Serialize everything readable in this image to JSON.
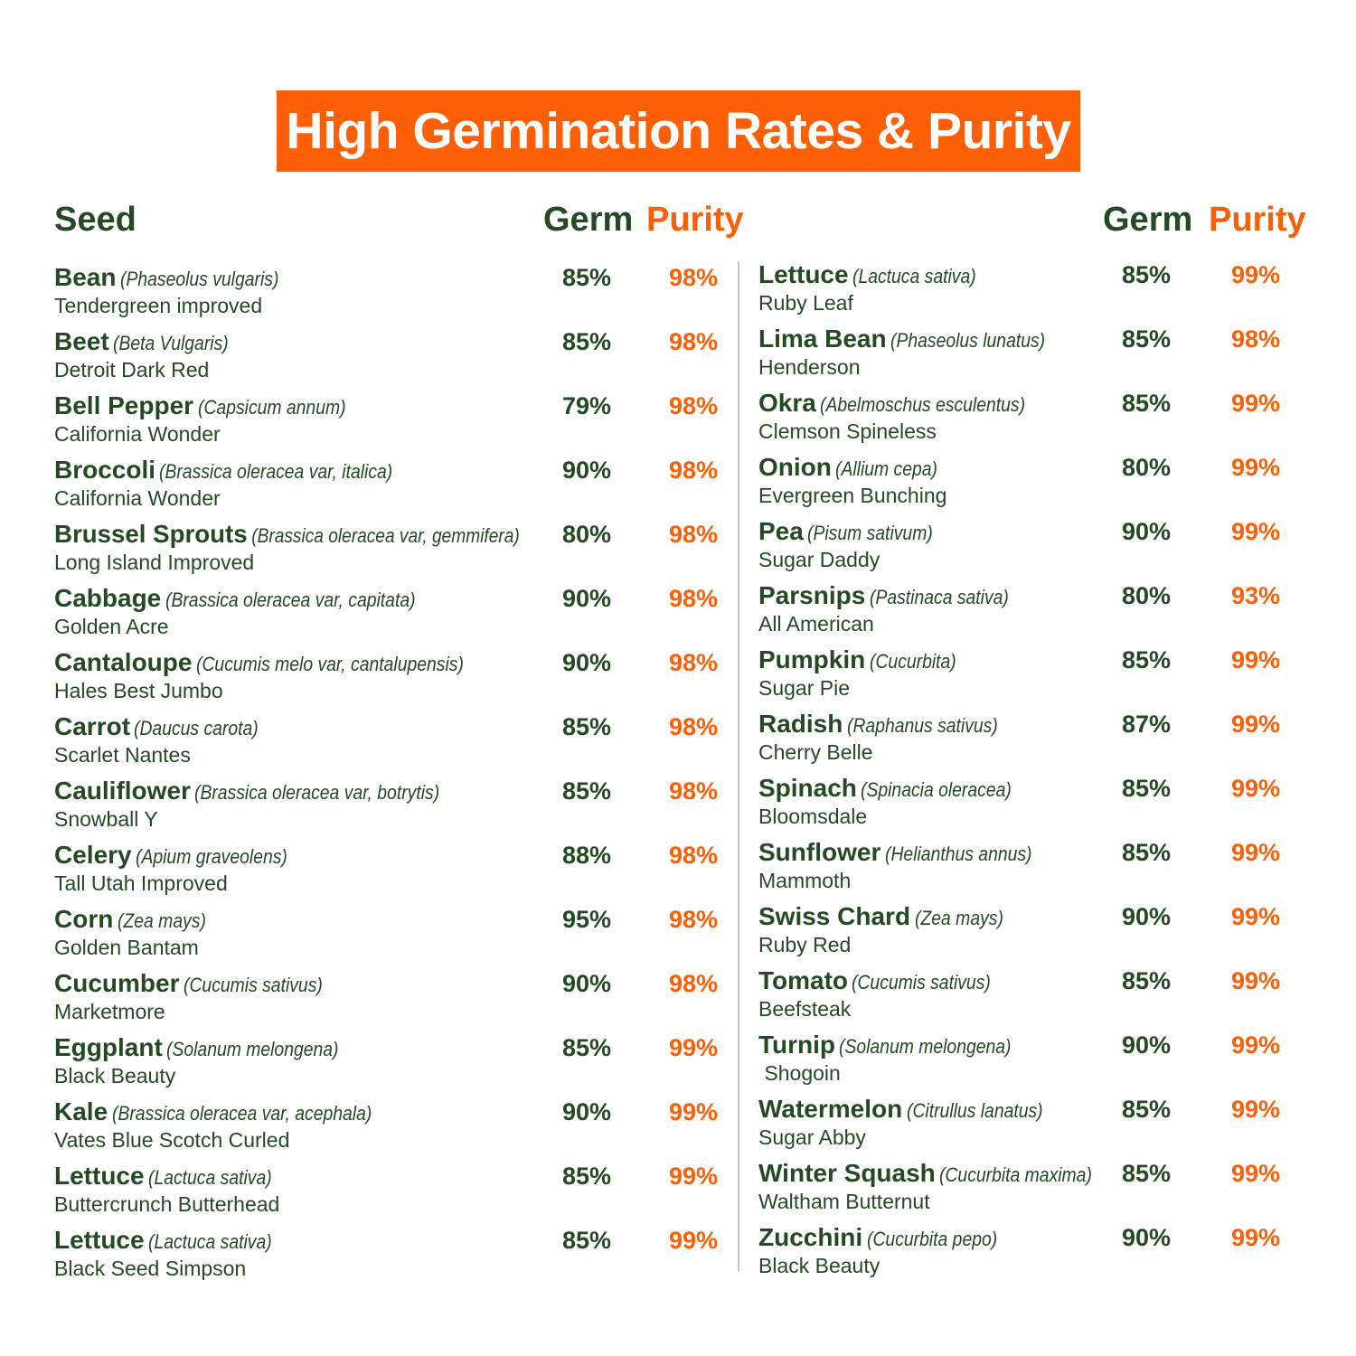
{
  "title": "High Germination Rates & Purity",
  "headers": {
    "seed": "Seed",
    "germ": "Germ",
    "purity": "Purity"
  },
  "colors": {
    "accent": "#fc5f06",
    "text": "#234a22",
    "divider": "#c4c4c4"
  },
  "left_rows": [
    {
      "name": "Bean",
      "sci": "(Phaseolus vulgaris)",
      "variety": "Tendergreen improved",
      "germ": "85%",
      "purity": "98%"
    },
    {
      "name": "Beet",
      "sci": "(Beta Vulgaris)",
      "variety": "Detroit Dark Red",
      "germ": "85%",
      "purity": "98%"
    },
    {
      "name": "Bell Pepper",
      "sci": "(Capsicum annum)",
      "variety": "California Wonder",
      "germ": "79%",
      "purity": "98%"
    },
    {
      "name": "Broccoli",
      "sci": "(Brassica oleracea var, italica)",
      "variety": "California Wonder",
      "germ": "90%",
      "purity": "98%"
    },
    {
      "name": "Brussel Sprouts",
      "sci": "(Brassica oleracea var, gemmifera)",
      "variety": "Long Island Improved",
      "germ": "80%",
      "purity": "98%"
    },
    {
      "name": "Cabbage",
      "sci": "(Brassica oleracea var, capitata)",
      "variety": "Golden Acre",
      "germ": "90%",
      "purity": "98%"
    },
    {
      "name": "Cantaloupe",
      "sci": "(Cucumis melo var, cantalupensis)",
      "variety": "Hales Best Jumbo",
      "germ": "90%",
      "purity": "98%"
    },
    {
      "name": "Carrot",
      "sci": "(Daucus carota)",
      "variety": "Scarlet Nantes",
      "germ": "85%",
      "purity": "98%"
    },
    {
      "name": "Cauliflower",
      "sci": "(Brassica oleracea var, botrytis)",
      "variety": "Snowball Y",
      "germ": "85%",
      "purity": "98%"
    },
    {
      "name": "Celery",
      "sci": "(Apium graveolens)",
      "variety": "Tall Utah Improved",
      "germ": "88%",
      "purity": "98%"
    },
    {
      "name": "Corn",
      "sci": "(Zea mays)",
      "variety": "Golden Bantam",
      "germ": "95%",
      "purity": "98%"
    },
    {
      "name": "Cucumber",
      "sci": "(Cucumis sativus)",
      "variety": "Marketmore",
      "germ": "90%",
      "purity": "98%"
    },
    {
      "name": "Eggplant",
      "sci": "(Solanum melongena)",
      "variety": "Black Beauty",
      "germ": "85%",
      "purity": "99%"
    },
    {
      "name": "Kale",
      "sci": "(Brassica oleracea var, acephala)",
      "variety": "Vates Blue Scotch Curled",
      "germ": "90%",
      "purity": "99%"
    },
    {
      "name": "Lettuce",
      "sci": "(Lactuca sativa)",
      "variety": "Buttercrunch Butterhead",
      "germ": "85%",
      "purity": "99%"
    },
    {
      "name": "Lettuce",
      "sci": "(Lactuca sativa)",
      "variety": "Black Seed Simpson",
      "germ": "85%",
      "purity": "99%"
    }
  ],
  "right_rows": [
    {
      "name": "Lettuce",
      "sci": "(Lactuca sativa)",
      "variety": "Ruby Leaf",
      "germ": "85%",
      "purity": "99%"
    },
    {
      "name": "Lima Bean",
      "sci": "(Phaseolus lunatus)",
      "variety": "Henderson",
      "germ": "85%",
      "purity": "98%"
    },
    {
      "name": "Okra",
      "sci": "(Abelmoschus esculentus)",
      "variety": "Clemson Spineless",
      "germ": "85%",
      "purity": "99%"
    },
    {
      "name": "Onion",
      "sci": "(Allium cepa)",
      "variety": "Evergreen Bunching",
      "germ": "80%",
      "purity": "99%"
    },
    {
      "name": "Pea",
      "sci": "(Pisum sativum)",
      "variety": "Sugar Daddy",
      "germ": "90%",
      "purity": "99%"
    },
    {
      "name": "Parsnips",
      "sci": "(Pastinaca sativa)",
      "variety": "All American",
      "germ": "80%",
      "purity": "93%"
    },
    {
      "name": "Pumpkin",
      "sci": "(Cucurbita)",
      "variety": "Sugar Pie",
      "germ": "85%",
      "purity": "99%"
    },
    {
      "name": "Radish",
      "sci": "(Raphanus sativus)",
      "variety": "Cherry Belle",
      "germ": "87%",
      "purity": "99%"
    },
    {
      "name": "Spinach",
      "sci": "(Spinacia oleracea)",
      "variety": "Bloomsdale",
      "germ": "85%",
      "purity": "99%"
    },
    {
      "name": "Sunflower",
      "sci": "(Helianthus annus)",
      "variety": "Mammoth",
      "germ": "85%",
      "purity": "99%"
    },
    {
      "name": "Swiss Chard",
      "sci": "(Zea mays)",
      "variety": "Ruby Red",
      "germ": "90%",
      "purity": "99%"
    },
    {
      "name": "Tomato",
      "sci": "(Cucumis sativus)",
      "variety": "Beefsteak",
      "germ": "85%",
      "purity": "99%"
    },
    {
      "name": "Turnip",
      "sci": "(Solanum melongena)",
      "variety": " Shogoin",
      "germ": "90%",
      "purity": "99%"
    },
    {
      "name": "Watermelon",
      "sci": "(Citrullus lanatus)",
      "variety": "Sugar Abby",
      "germ": "85%",
      "purity": "99%"
    },
    {
      "name": "Winter Squash",
      "sci": "(Cucurbita maxima)",
      "variety": "Waltham Butternut",
      "germ": "85%",
      "purity": "99%"
    },
    {
      "name": "Zucchini",
      "sci": "(Cucurbita pepo)",
      "variety": "Black Beauty",
      "germ": "90%",
      "purity": "99%"
    }
  ]
}
